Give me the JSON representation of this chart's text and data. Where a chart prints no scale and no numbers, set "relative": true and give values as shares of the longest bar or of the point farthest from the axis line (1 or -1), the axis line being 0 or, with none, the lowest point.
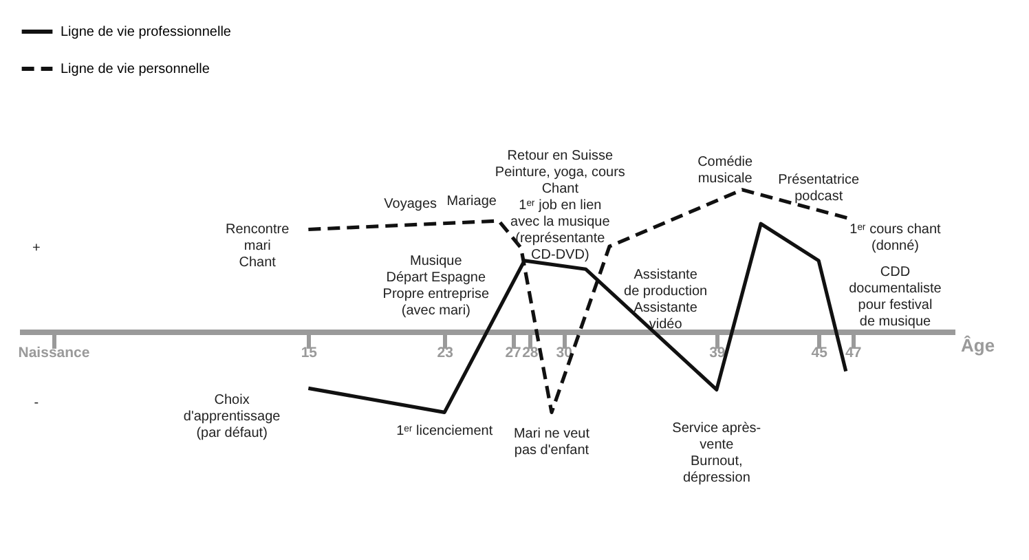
{
  "chart_data": {
    "type": "line",
    "relative": true,
    "legend": "top left",
    "xlabel": "Âge",
    "xlim": [
      -2,
      53
    ],
    "xticks": [
      {
        "value": 0,
        "label": "Naissance"
      },
      15,
      23,
      27,
      28,
      30,
      39,
      45,
      47
    ],
    "series": [
      {
        "name": "Ligne de vie professionnelle",
        "color": "#111111",
        "line_style": "solid",
        "x": [
          15,
          23,
          27.7,
          31.3,
          39,
          41.6,
          45,
          46.6
        ],
        "values": [
          -0.4,
          -0.57,
          0.5,
          0.44,
          -0.41,
          0.76,
          0.5,
          -0.28
        ]
      },
      {
        "name": "Ligne de vie personnelle",
        "color": "#111111",
        "line_style": "dashed",
        "x": [
          15,
          26.2,
          27.5,
          29.3,
          32.7,
          40.5,
          46.7
        ],
        "values": [
          0.72,
          0.78,
          0.59,
          -0.57,
          0.6,
          1,
          0.8
        ]
      }
    ],
    "annotations": [
      "+",
      "-",
      "Rencontre\nmari\nChant",
      "Voyages",
      "Mariage",
      "Musique\nDépart Espagne\nPropre entreprise\n(avec mari)",
      "Retour en Suisse\nPeinture, yoga, cours\nChant\n1ᵉʳ job en lien\navec la musique\n(représentante\nCD-DVD)",
      "Mari ne veut\npas d'enfant",
      "Service après-\nvente\nBurnout,\ndépression",
      "Assistante\nde production\nAssistante\nvidéo",
      "Comédie\nmusicale",
      "Présentatrice\npodcast",
      "1ᵉʳ cours chant\n(donné)",
      "CDD\ndocumentaliste\npour festival\nde musique",
      "Choix\nd'apprentissage\n(par défaut)",
      "1ᵉʳ licenciement"
    ]
  }
}
